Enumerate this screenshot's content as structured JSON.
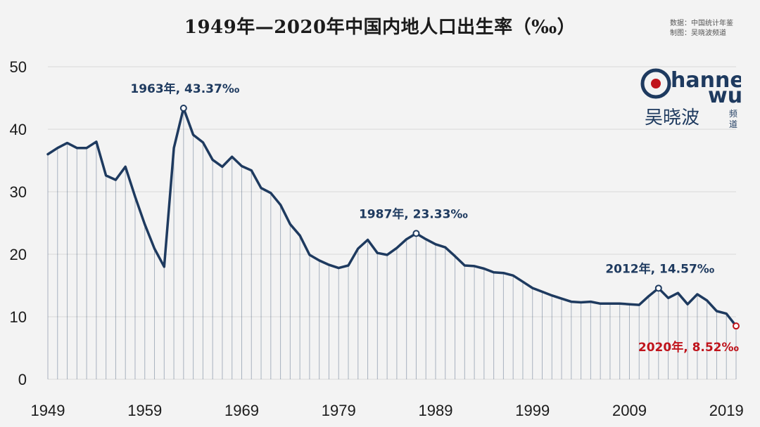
{
  "title": "1949年—2020年中国内地人口出生率（‰）",
  "source": {
    "line1": "数据：中国统计年鉴",
    "line2": "制图：吴晓波频道"
  },
  "logo": {
    "word_top": "hannel",
    "word_bottom": "wu",
    "cn": "吴晓波",
    "cn_small_1": "频",
    "cn_small_2": "道"
  },
  "colors": {
    "line": "#1e3a5f",
    "accent": "#c0141c",
    "grid": "#d8d8d8",
    "background": "#f3f3f3"
  },
  "chart_data": {
    "type": "line",
    "title": "1949年—2020年中国内地人口出生率（‰）",
    "xlabel": "",
    "ylabel": "",
    "ylim": [
      0,
      50
    ],
    "yticks": [
      "0",
      "10",
      "20",
      "30",
      "40",
      "50"
    ],
    "xticks": [
      "1949",
      "1959",
      "1969",
      "1979",
      "1989",
      "1999",
      "2009",
      "2019"
    ],
    "x": [
      1949,
      1950,
      1951,
      1952,
      1953,
      1954,
      1955,
      1956,
      1957,
      1958,
      1959,
      1960,
      1961,
      1962,
      1963,
      1964,
      1965,
      1966,
      1967,
      1968,
      1969,
      1970,
      1971,
      1972,
      1973,
      1974,
      1975,
      1976,
      1977,
      1978,
      1979,
      1980,
      1981,
      1982,
      1983,
      1984,
      1985,
      1986,
      1987,
      1988,
      1989,
      1990,
      1991,
      1992,
      1993,
      1994,
      1995,
      1996,
      1997,
      1998,
      1999,
      2000,
      2001,
      2002,
      2003,
      2004,
      2005,
      2006,
      2007,
      2008,
      2009,
      2010,
      2011,
      2012,
      2013,
      2014,
      2015,
      2016,
      2017,
      2018,
      2019,
      2020
    ],
    "series": [
      {
        "name": "出生率",
        "values": [
          36.0,
          37.0,
          37.8,
          37.0,
          37.0,
          38.0,
          32.6,
          31.9,
          34.0,
          29.2,
          24.8,
          20.9,
          18.0,
          37.0,
          43.37,
          39.1,
          37.9,
          35.1,
          34.0,
          35.6,
          34.1,
          33.4,
          30.6,
          29.8,
          27.9,
          24.8,
          23.0,
          19.9,
          19.0,
          18.3,
          17.8,
          18.2,
          20.9,
          22.3,
          20.2,
          19.9,
          21.0,
          22.4,
          23.33,
          22.4,
          21.6,
          21.1,
          19.7,
          18.2,
          18.1,
          17.7,
          17.1,
          17.0,
          16.6,
          15.6,
          14.6,
          14.0,
          13.4,
          12.9,
          12.4,
          12.3,
          12.4,
          12.1,
          12.1,
          12.1,
          12.0,
          11.9,
          13.3,
          14.57,
          13.0,
          13.8,
          12.0,
          13.6,
          12.6,
          10.9,
          10.5,
          8.52
        ]
      }
    ],
    "annotations": [
      {
        "year": 1963,
        "value": 43.37,
        "label": "1963年, 43.37‰"
      },
      {
        "year": 1987,
        "value": 23.33,
        "label": "1987年, 23.33‰"
      },
      {
        "year": 2012,
        "value": 14.57,
        "label": "2012年, 14.57‰"
      },
      {
        "year": 2020,
        "value": 8.52,
        "label": "2020年, 8.52‰",
        "highlight": true
      }
    ]
  }
}
